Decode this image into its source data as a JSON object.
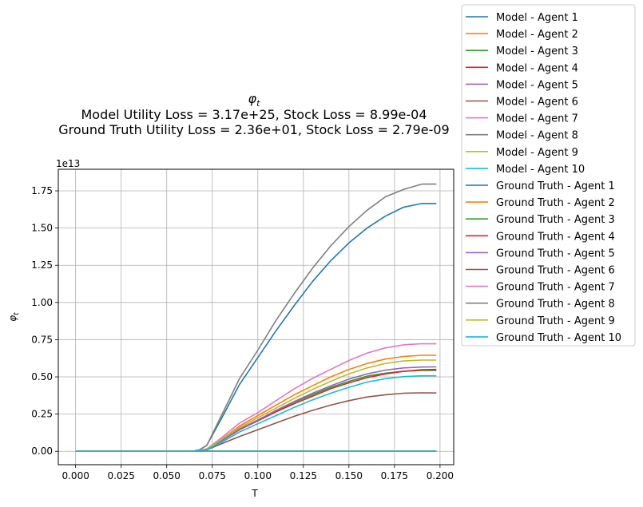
{
  "chart_data": {
    "type": "line",
    "title_symbol": "φ_t",
    "title_lines": [
      "Model Utility Loss = 3.17e+25, Stock Loss = 8.99e-04",
      "Ground Truth Utility Loss = 2.36e+01, Stock Loss = 2.79e-09"
    ],
    "xlabel": "T",
    "ylabel": "φ_t",
    "y_offset_label": "1e13",
    "xlim": [
      -0.0095,
      0.2075
    ],
    "ylim": [
      -0.09,
      1.895
    ],
    "x_ticks": [
      0.0,
      0.025,
      0.05,
      0.075,
      0.1,
      0.125,
      0.15,
      0.175,
      0.2
    ],
    "x_tick_labels": [
      "0.000",
      "0.025",
      "0.050",
      "0.075",
      "0.100",
      "0.125",
      "0.150",
      "0.175",
      "0.200"
    ],
    "y_ticks": [
      0.0,
      0.25,
      0.5,
      0.75,
      1.0,
      1.25,
      1.5,
      1.75
    ],
    "y_tick_labels": [
      "0.00",
      "0.25",
      "0.50",
      "0.75",
      "1.00",
      "1.25",
      "1.50",
      "1.75"
    ],
    "grid": true,
    "legend_placement": "outside-top-right",
    "x": [
      0.0,
      0.025,
      0.05,
      0.064,
      0.068,
      0.072,
      0.08,
      0.09,
      0.1,
      0.11,
      0.12,
      0.13,
      0.14,
      0.15,
      0.16,
      0.17,
      0.18,
      0.19,
      0.198
    ],
    "series": [
      {
        "name": "Model - Agent 1",
        "color": "#1f77b4",
        "values": [
          0,
          0,
          0,
          0,
          0,
          0,
          0,
          0,
          0,
          0,
          0,
          0,
          0,
          0,
          0,
          0,
          0,
          0,
          0
        ]
      },
      {
        "name": "Model - Agent 2",
        "color": "#ff7f0e",
        "values": [
          0,
          0,
          0,
          0,
          0,
          0,
          0,
          0,
          0,
          0,
          0,
          0,
          0,
          0,
          0,
          0,
          0,
          0,
          0
        ]
      },
      {
        "name": "Model - Agent 3",
        "color": "#2ca02c",
        "values": [
          0,
          0,
          0,
          0,
          0,
          0,
          0,
          0,
          0,
          0,
          0,
          0,
          0,
          0,
          0,
          0,
          0,
          0,
          0
        ]
      },
      {
        "name": "Model - Agent 4",
        "color": "#d62728",
        "values": [
          0,
          0,
          0,
          0,
          0,
          0,
          0,
          0,
          0,
          0,
          0,
          0,
          0,
          0,
          0,
          0,
          0,
          0,
          0
        ]
      },
      {
        "name": "Model - Agent 5",
        "color": "#9467bd",
        "values": [
          0,
          0,
          0,
          0,
          0,
          0,
          0,
          0,
          0,
          0,
          0,
          0,
          0,
          0,
          0,
          0,
          0,
          0,
          0
        ]
      },
      {
        "name": "Model - Agent 6",
        "color": "#8c564b",
        "values": [
          0,
          0,
          0,
          0,
          0,
          0,
          0,
          0,
          0,
          0,
          0,
          0,
          0,
          0,
          0,
          0,
          0,
          0,
          0
        ]
      },
      {
        "name": "Model - Agent 7",
        "color": "#e377c2",
        "values": [
          0,
          0,
          0,
          0,
          0,
          0,
          0,
          0,
          0,
          0,
          0,
          0,
          0,
          0,
          0,
          0,
          0,
          0,
          0
        ]
      },
      {
        "name": "Model - Agent 8",
        "color": "#7f7f7f",
        "values": [
          0,
          0,
          0,
          0,
          0,
          0,
          0,
          0,
          0,
          0,
          0,
          0,
          0,
          0,
          0,
          0,
          0,
          0,
          0
        ]
      },
      {
        "name": "Model - Agent 9",
        "color": "#bcbd22",
        "values": [
          0,
          0,
          0,
          0,
          0,
          0,
          0,
          0,
          0,
          0,
          0,
          0,
          0,
          0,
          0,
          0,
          0,
          0,
          0
        ]
      },
      {
        "name": "Model - Agent 10",
        "color": "#17becf",
        "values": [
          0,
          0,
          0,
          0,
          0,
          0,
          0,
          0,
          0,
          0,
          0,
          0,
          0,
          0,
          0,
          0,
          0,
          0,
          0
        ]
      },
      {
        "name": "Ground Truth - Agent 1",
        "color": "#1f77b4",
        "values": [
          0,
          0,
          0,
          0,
          0.01,
          0.04,
          0.22,
          0.45,
          0.63,
          0.81,
          0.98,
          1.14,
          1.28,
          1.4,
          1.5,
          1.58,
          1.64,
          1.665,
          1.665
        ]
      },
      {
        "name": "Ground Truth - Agent 2",
        "color": "#ff7f0e",
        "values": [
          0,
          0,
          0,
          0,
          0.004,
          0.015,
          0.08,
          0.17,
          0.24,
          0.31,
          0.38,
          0.44,
          0.5,
          0.55,
          0.59,
          0.62,
          0.637,
          0.645,
          0.645
        ]
      },
      {
        "name": "Ground Truth - Agent 3",
        "color": "#2ca02c",
        "values": [
          0,
          0,
          0,
          0,
          0.004,
          0.013,
          0.07,
          0.15,
          0.21,
          0.27,
          0.33,
          0.38,
          0.43,
          0.47,
          0.505,
          0.525,
          0.538,
          0.543,
          0.543
        ]
      },
      {
        "name": "Ground Truth - Agent 4",
        "color": "#d62728",
        "values": [
          0,
          0,
          0,
          0,
          0.004,
          0.013,
          0.07,
          0.145,
          0.205,
          0.265,
          0.32,
          0.37,
          0.42,
          0.46,
          0.495,
          0.52,
          0.537,
          0.548,
          0.55
        ]
      },
      {
        "name": "Ground Truth - Agent 5",
        "color": "#9467bd",
        "values": [
          0,
          0,
          0,
          0,
          0.004,
          0.014,
          0.07,
          0.15,
          0.21,
          0.275,
          0.335,
          0.39,
          0.44,
          0.485,
          0.52,
          0.545,
          0.56,
          0.566,
          0.567
        ]
      },
      {
        "name": "Ground Truth - Agent 6",
        "color": "#8c564b",
        "values": [
          0,
          0,
          0,
          0,
          0.003,
          0.01,
          0.05,
          0.1,
          0.145,
          0.19,
          0.235,
          0.275,
          0.31,
          0.34,
          0.365,
          0.38,
          0.39,
          0.393,
          0.392
        ]
      },
      {
        "name": "Ground Truth - Agent 7",
        "color": "#e377c2",
        "values": [
          0,
          0,
          0,
          0,
          0.005,
          0.016,
          0.09,
          0.19,
          0.26,
          0.34,
          0.42,
          0.49,
          0.55,
          0.61,
          0.66,
          0.695,
          0.715,
          0.723,
          0.722
        ]
      },
      {
        "name": "Ground Truth - Agent 8",
        "color": "#7f7f7f",
        "values": [
          0,
          0,
          0,
          0,
          0.01,
          0.04,
          0.24,
          0.49,
          0.68,
          0.88,
          1.06,
          1.23,
          1.38,
          1.51,
          1.62,
          1.71,
          1.76,
          1.795,
          1.795
        ]
      },
      {
        "name": "Ground Truth - Agent 9",
        "color": "#bcbd22",
        "values": [
          0,
          0,
          0,
          0,
          0.004,
          0.014,
          0.08,
          0.16,
          0.225,
          0.29,
          0.355,
          0.415,
          0.47,
          0.52,
          0.56,
          0.59,
          0.607,
          0.613,
          0.613
        ]
      },
      {
        "name": "Ground Truth - Agent 10",
        "color": "#17becf",
        "values": [
          0,
          0,
          0,
          0,
          0.004,
          0.012,
          0.06,
          0.13,
          0.185,
          0.24,
          0.295,
          0.345,
          0.39,
          0.43,
          0.465,
          0.488,
          0.502,
          0.507,
          0.507
        ]
      }
    ]
  }
}
